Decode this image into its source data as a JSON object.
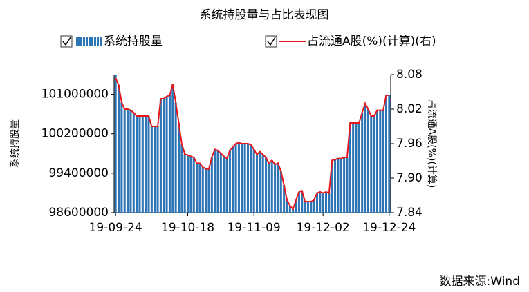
{
  "chart_data": {
    "type": "combo",
    "title": "系统持股量与占比表现图",
    "y_label": "系统持股量",
    "y2_label": "占流通A股(%)(计算)",
    "source": "数据来源:Wind",
    "categories": [
      "19-09-24",
      null,
      null,
      null,
      null,
      null,
      null,
      null,
      null,
      null,
      null,
      null,
      null,
      null,
      null,
      null,
      null,
      null,
      null,
      null,
      null,
      null,
      null,
      null,
      "19-10-18",
      null,
      null,
      null,
      null,
      null,
      null,
      null,
      null,
      null,
      null,
      null,
      null,
      null,
      null,
      null,
      null,
      null,
      null,
      null,
      null,
      null,
      "19-11-09",
      null,
      null,
      null,
      null,
      null,
      null,
      null,
      null,
      null,
      null,
      null,
      null,
      null,
      null,
      null,
      null,
      null,
      null,
      null,
      null,
      null,
      null,
      "19-12-02",
      null,
      null,
      null,
      null,
      null,
      null,
      null,
      null,
      null,
      null,
      null,
      null,
      null,
      null,
      null,
      null,
      null,
      null,
      null,
      null,
      null,
      "19-12-24"
    ],
    "series": [
      {
        "name": "系统持股量",
        "type": "bar",
        "color": "#2e75b6",
        "values": [
          101400000,
          101190000,
          100840000,
          100700000,
          100700000,
          100672000,
          100630000,
          100560000,
          100560000,
          100560000,
          100560000,
          100560000,
          100350000,
          100350000,
          100350000,
          100910000,
          100910000,
          100952000,
          100980000,
          101204000,
          100840000,
          100420000,
          100000000,
          99790000,
          99762000,
          99748000,
          99720000,
          99608000,
          99608000,
          99524000,
          99482000,
          99482000,
          99720000,
          99888000,
          99860000,
          99804000,
          99748000,
          99692000,
          99860000,
          99930000,
          100000000,
          100028000,
          100000000,
          100000000,
          100000000,
          99972000,
          99888000,
          99776000,
          99832000,
          99776000,
          99720000,
          99608000,
          99664000,
          99580000,
          99608000,
          99440000,
          99160000,
          98852000,
          98740000,
          98670000,
          98852000,
          99020000,
          99048000,
          98824000,
          98824000,
          98824000,
          98852000,
          98992000,
          99020000,
          98992000,
          99020000,
          98992000,
          99664000,
          99678000,
          99692000,
          99692000,
          99720000,
          99720000,
          100420000,
          100420000,
          100420000,
          100420000,
          100630000,
          100812000,
          100700000,
          100560000,
          100560000,
          100672000,
          100672000,
          100672000,
          100980000,
          100980000
        ]
      },
      {
        "name": "占流通A股(%)(计算)(右)",
        "type": "line",
        "axis": "y2",
        "color": "#e8161b",
        "values": [
          8.074,
          8.062,
          8.032,
          8.02,
          8.02,
          8.018,
          8.014,
          8.008,
          8.008,
          8.008,
          8.008,
          8.008,
          7.99,
          7.99,
          7.99,
          8.038,
          8.038,
          8.042,
          8.044,
          8.063,
          8.032,
          7.996,
          7.96,
          7.942,
          7.94,
          7.938,
          7.936,
          7.926,
          7.926,
          7.919,
          7.916,
          7.916,
          7.936,
          7.95,
          7.948,
          7.943,
          7.938,
          7.934,
          7.948,
          7.954,
          7.96,
          7.962,
          7.96,
          7.96,
          7.96,
          7.958,
          7.95,
          7.941,
          7.946,
          7.941,
          7.936,
          7.926,
          7.931,
          7.924,
          7.926,
          7.912,
          7.888,
          7.862,
          7.852,
          7.846,
          7.862,
          7.876,
          7.878,
          7.859,
          7.859,
          7.859,
          7.862,
          7.874,
          7.876,
          7.874,
          7.876,
          7.874,
          7.931,
          7.932,
          7.934,
          7.934,
          7.936,
          7.936,
          7.996,
          7.996,
          7.996,
          7.996,
          8.014,
          8.03,
          8.02,
          8.008,
          8.008,
          8.018,
          8.018,
          8.018,
          8.044,
          8.044
        ]
      }
    ],
    "ylim": [
      98600000,
      101400000
    ],
    "yticks": [
      98600000,
      99400000,
      100200000,
      101000000
    ],
    "y2lim": [
      7.84,
      8.08
    ],
    "y2ticks": [
      7.84,
      {
        "value": 7.9,
        "label": "7.90"
      },
      7.96,
      8.02,
      8.08
    ],
    "grid": false
  }
}
